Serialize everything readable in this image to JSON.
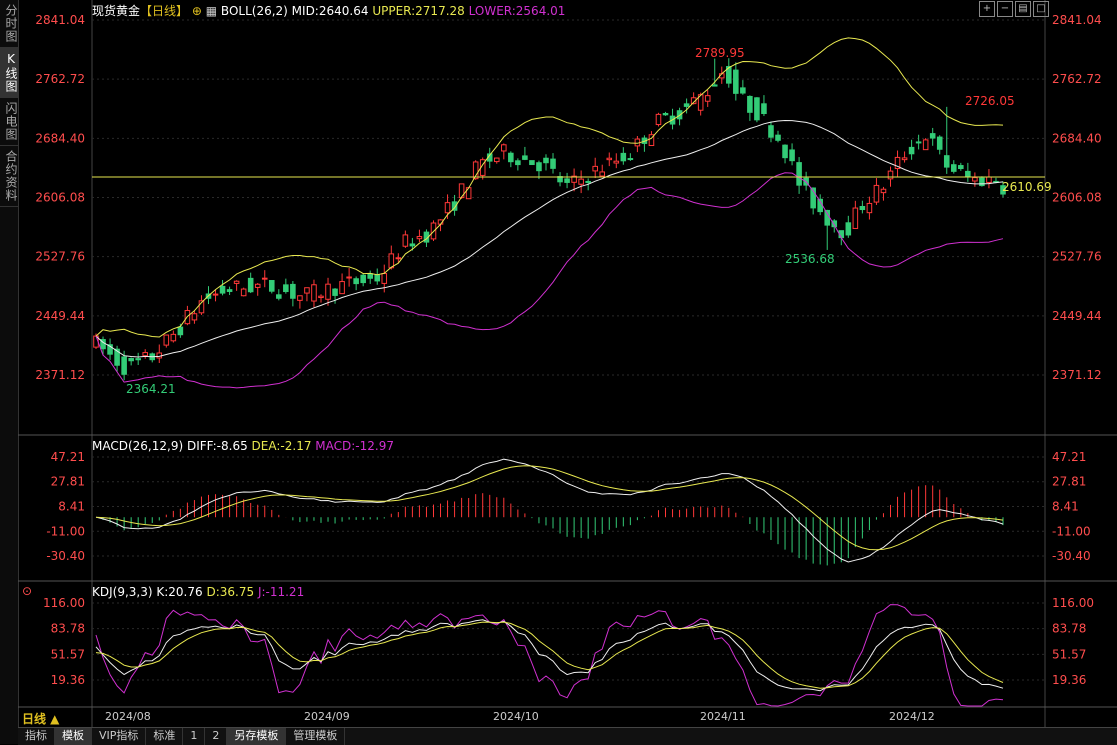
{
  "sidebar": [
    "分时图",
    "K线图",
    "闪电图",
    "合约资料"
  ],
  "sidebar_active": 1,
  "main": {
    "symbol": "现货黄金",
    "period_bracket": "【日线】",
    "boll_label": "BOLL(26,2)",
    "mid": "MID:2640.64",
    "upper": "UPPER:2717.28",
    "lower": "LOWER:2564.01",
    "y_ticks": [
      "2841.04",
      "2762.72",
      "2684.40",
      "2606.08",
      "2527.76",
      "2449.44",
      "2371.12"
    ],
    "annotations": {
      "high": "2789.95",
      "high2": "2726.05",
      "low": "2536.68",
      "low_start": "2364.21",
      "last": "2610.69"
    }
  },
  "macd": {
    "label": "MACD(26,12,9)",
    "diff": "DIFF:-8.65",
    "dea": "DEA:-2.17",
    "macd": "MACD:-12.97",
    "y_ticks": [
      "47.21",
      "27.81",
      "8.41",
      "-11.00",
      "-30.40"
    ]
  },
  "kdj": {
    "label": "KDJ(9,3,3)",
    "k": "K:20.76",
    "d": "D:36.75",
    "j": "J:-11.21",
    "y_ticks": [
      "116.00",
      "83.78",
      "51.57",
      "19.36"
    ]
  },
  "x_labels": [
    "2024/08",
    "2024/09",
    "2024/10",
    "2024/11",
    "2024/12"
  ],
  "period_button": "日线 ▲",
  "bottom_tabs": [
    "指标",
    "模板",
    "VIP指标",
    "标准",
    "1",
    "2",
    "另存模板",
    "管理模板"
  ],
  "bottom_tab_active": [
    1,
    6
  ],
  "colors": {
    "up": "#ff3838",
    "down": "#33cc77",
    "yellow": "#e8e850",
    "magenta": "#d030d0",
    "white": "#eeeeee",
    "red_axis": "#ff4d4d"
  },
  "chart_data": {
    "type": "candlestick",
    "main_ylim": [
      2290,
      2841.04
    ],
    "ohlc_keypoints": {
      "start_low": 2364.21,
      "oct_high": 2789.95,
      "nov_low": 2536.68,
      "dec_high": 2726.05,
      "last_close": 2610.69
    }
  }
}
